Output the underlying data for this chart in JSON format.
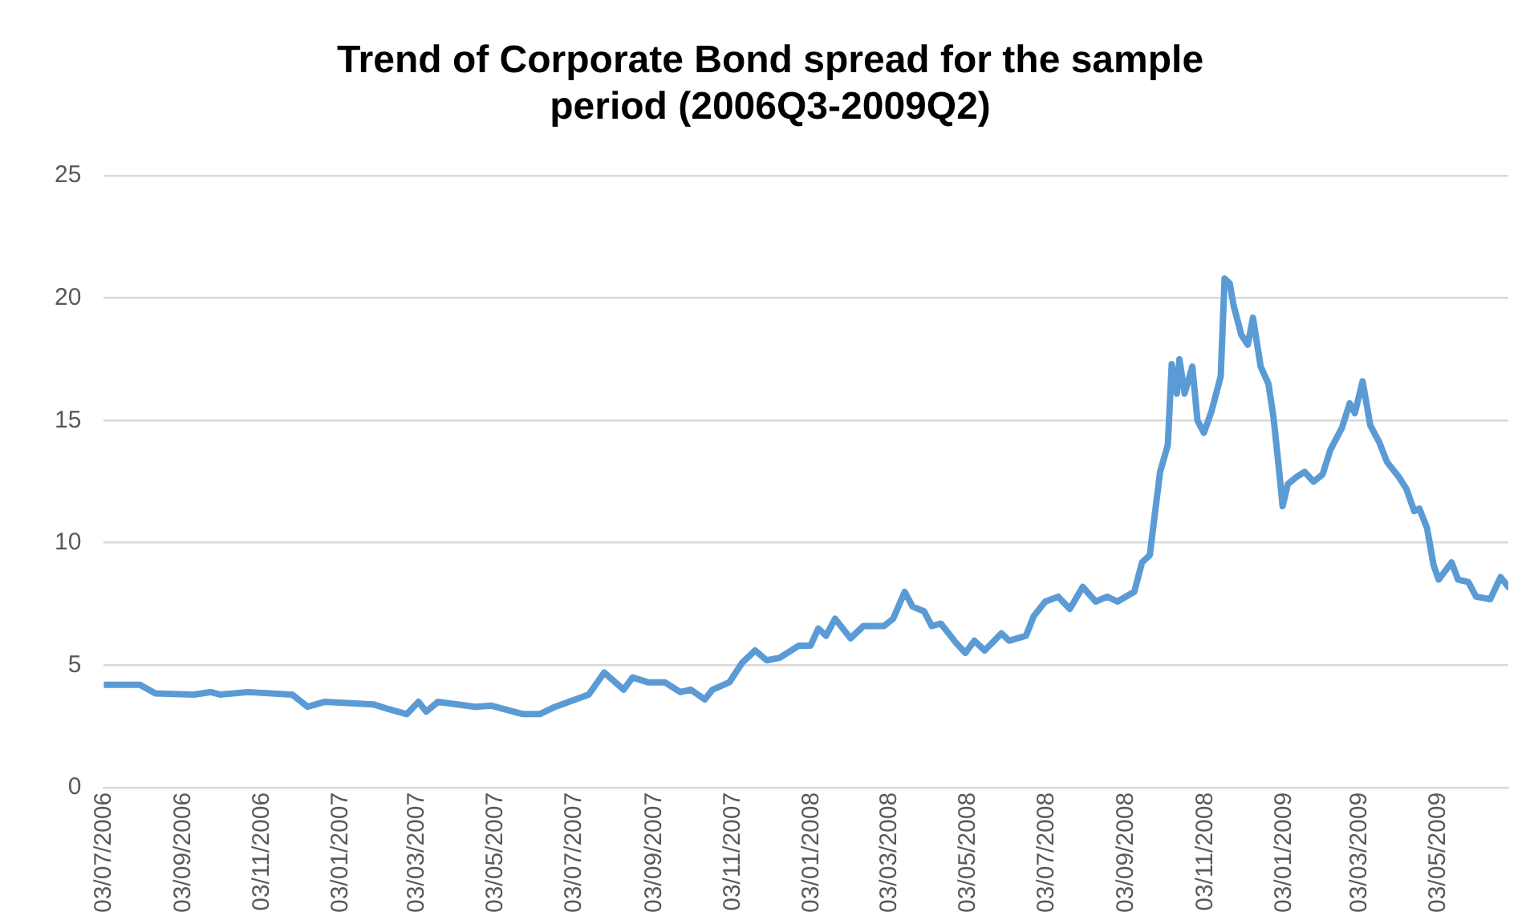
{
  "chart_data": {
    "type": "line",
    "title": "Trend of Corporate Bond spread for the sample period (2006Q3-2009Q2)",
    "x": [
      "2006-07-03",
      "2006-07-31",
      "2006-08-12",
      "2006-09-11",
      "2006-09-24",
      "2006-10-01",
      "2006-10-23",
      "2006-11-26",
      "2006-12-08",
      "2006-12-21",
      "2007-01-28",
      "2007-02-09",
      "2007-02-23",
      "2007-03-04",
      "2007-03-10",
      "2007-03-19",
      "2007-04-17",
      "2007-04-29",
      "2007-05-24",
      "2007-06-02",
      "2007-06-06",
      "2007-06-18",
      "2007-07-14",
      "2007-07-26",
      "2007-08-10",
      "2007-08-17",
      "2007-08-29",
      "2007-09-11",
      "2007-09-23",
      "2007-10-01",
      "2007-10-12",
      "2007-10-18",
      "2007-10-31",
      "2007-11-10",
      "2007-11-20",
      "2007-11-29",
      "2007-12-09",
      "2007-12-24",
      "2008-01-02",
      "2008-01-08",
      "2008-01-14",
      "2008-01-21",
      "2008-02-02",
      "2008-02-12",
      "2008-02-28",
      "2008-03-06",
      "2008-03-15",
      "2008-03-21",
      "2008-03-30",
      "2008-04-05",
      "2008-04-12",
      "2008-04-24",
      "2008-05-01",
      "2008-05-08",
      "2008-05-16",
      "2008-05-29",
      "2008-06-04",
      "2008-06-17",
      "2008-06-23",
      "2008-07-02",
      "2008-07-12",
      "2008-07-21",
      "2008-07-31",
      "2008-08-10",
      "2008-08-19",
      "2008-08-27",
      "2008-09-09",
      "2008-09-15",
      "2008-09-21",
      "2008-09-29",
      "2008-10-05",
      "2008-10-08",
      "2008-10-12",
      "2008-10-14",
      "2008-10-18",
      "2008-10-24",
      "2008-10-28",
      "2008-11-02",
      "2008-11-08",
      "2008-11-15",
      "2008-11-18",
      "2008-11-22",
      "2008-11-25",
      "2008-12-01",
      "2008-12-06",
      "2008-12-10",
      "2008-12-16",
      "2008-12-22",
      "2008-12-26",
      "2008-12-30",
      "2009-01-02",
      "2009-01-06",
      "2009-01-13",
      "2009-01-19",
      "2009-01-26",
      "2009-02-02",
      "2009-02-08",
      "2009-02-17",
      "2009-02-23",
      "2009-02-27",
      "2009-03-05",
      "2009-03-11",
      "2009-03-18",
      "2009-03-24",
      "2009-04-02",
      "2009-04-08",
      "2009-04-14",
      "2009-04-18",
      "2009-04-24",
      "2009-04-29",
      "2009-05-03",
      "2009-05-13",
      "2009-05-18",
      "2009-05-26",
      "2009-06-01",
      "2009-06-12",
      "2009-06-20",
      "2009-06-26"
    ],
    "series": [
      {
        "color": "#5b9bd5",
        "values": [
          4.2,
          4.2,
          3.85,
          3.8,
          3.9,
          3.8,
          3.9,
          3.8,
          3.3,
          3.5,
          3.4,
          3.2,
          3.0,
          3.5,
          3.1,
          3.5,
          3.3,
          3.35,
          3.0,
          3.0,
          3.0,
          3.3,
          3.8,
          4.7,
          4.0,
          4.5,
          4.3,
          4.3,
          3.9,
          4.0,
          3.6,
          4.0,
          4.3,
          5.1,
          5.6,
          5.2,
          5.3,
          5.8,
          5.8,
          6.5,
          6.2,
          6.9,
          6.1,
          6.6,
          6.6,
          6.9,
          8.0,
          7.4,
          7.2,
          6.6,
          6.7,
          5.9,
          5.5,
          6.0,
          5.6,
          6.3,
          6.0,
          6.2,
          7.0,
          7.6,
          7.8,
          7.3,
          8.2,
          7.6,
          7.8,
          7.6,
          8.0,
          9.2,
          9.5,
          12.9,
          14.0,
          17.3,
          16.1,
          17.5,
          16.1,
          17.2,
          15.0,
          14.5,
          15.4,
          16.8,
          20.8,
          20.6,
          19.7,
          18.5,
          18.1,
          19.2,
          17.2,
          16.5,
          15.1,
          13.1,
          11.5,
          12.4,
          12.7,
          12.9,
          12.5,
          12.8,
          13.8,
          14.7,
          15.7,
          15.3,
          16.6,
          14.8,
          14.1,
          13.3,
          12.7,
          12.2,
          11.3,
          11.4,
          10.6,
          9.1,
          8.5,
          9.2,
          8.5,
          8.4,
          7.8,
          7.7,
          8.6,
          8.2
        ]
      }
    ],
    "xlim": [
      "2006-07-03",
      "2009-06-26"
    ],
    "xticks": [
      {
        "value": "2006-07-03",
        "label": "03/07/2006"
      },
      {
        "value": "2006-09-03",
        "label": "03/09/2006"
      },
      {
        "value": "2006-11-03",
        "label": "03/11/2006"
      },
      {
        "value": "2007-01-03",
        "label": "03/01/2007"
      },
      {
        "value": "2007-03-03",
        "label": "03/03/2007"
      },
      {
        "value": "2007-05-03",
        "label": "03/05/2007"
      },
      {
        "value": "2007-07-03",
        "label": "03/07/2007"
      },
      {
        "value": "2007-09-03",
        "label": "03/09/2007"
      },
      {
        "value": "2007-11-03",
        "label": "03/11/2007"
      },
      {
        "value": "2008-01-03",
        "label": "03/01/2008"
      },
      {
        "value": "2008-03-03",
        "label": "03/03/2008"
      },
      {
        "value": "2008-05-03",
        "label": "03/05/2008"
      },
      {
        "value": "2008-07-03",
        "label": "03/07/2008"
      },
      {
        "value": "2008-09-03",
        "label": "03/09/2008"
      },
      {
        "value": "2008-11-03",
        "label": "03/11/2008"
      },
      {
        "value": "2009-01-03",
        "label": "03/01/2009"
      },
      {
        "value": "2009-03-03",
        "label": "03/03/2009"
      },
      {
        "value": "2009-05-03",
        "label": "03/05/2009"
      }
    ],
    "ylim": [
      0,
      25
    ],
    "yticks": [
      0,
      5,
      10,
      15,
      20,
      25
    ],
    "grid": "y",
    "legend": false,
    "marker": "none",
    "line_style": "solid"
  }
}
